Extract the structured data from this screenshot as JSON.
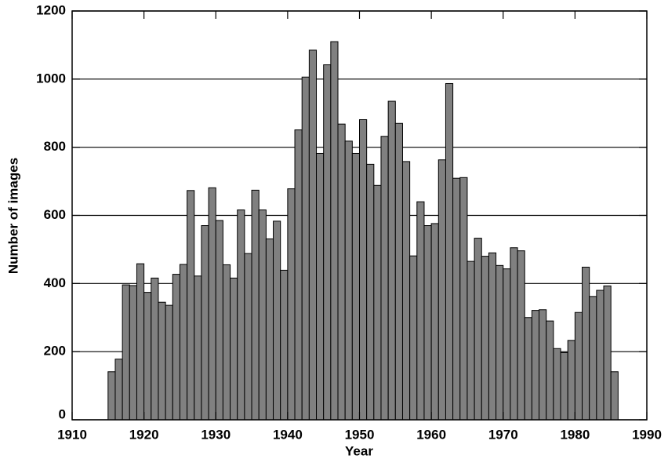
{
  "chart_data": {
    "type": "histogram",
    "x_label": "Year",
    "y_label": "Number of images",
    "bins": [
      1915,
      1916,
      1917,
      1918,
      1919,
      1920,
      1921,
      1922,
      1923,
      1924,
      1925,
      1926,
      1927,
      1928,
      1929,
      1930,
      1931,
      1932,
      1933,
      1934,
      1935,
      1936,
      1937,
      1938,
      1939,
      1940,
      1941,
      1942,
      1943,
      1944,
      1945,
      1946,
      1947,
      1948,
      1949,
      1950,
      1951,
      1952,
      1953,
      1954,
      1955,
      1956,
      1957,
      1958,
      1959,
      1960,
      1961,
      1962,
      1963,
      1964,
      1965,
      1966,
      1967,
      1968,
      1969,
      1970,
      1971,
      1972,
      1973,
      1974,
      1975,
      1976,
      1977,
      1978,
      1979,
      1980,
      1981,
      1982,
      1983,
      1984,
      1985,
      1986
    ],
    "values": [
      141,
      178,
      396,
      394,
      458,
      374,
      416,
      345,
      336,
      427,
      456,
      673,
      422,
      570,
      681,
      585,
      455,
      416,
      616,
      488,
      674,
      616,
      531,
      583,
      439,
      678,
      851,
      1006,
      1085,
      782,
      1042,
      1110,
      868,
      818,
      782,
      881,
      750,
      688,
      832,
      935,
      870,
      758,
      481,
      640,
      570,
      576,
      763,
      987,
      709,
      711,
      465,
      533,
      480,
      490,
      453,
      443,
      505,
      496,
      300,
      321,
      323,
      290,
      209,
      197,
      233,
      315,
      448,
      362,
      380,
      393,
      141
    ],
    "color": "#808080",
    "xlim": [
      1910,
      1990
    ],
    "xticks": [
      1910,
      1920,
      1930,
      1940,
      1950,
      1960,
      1970,
      1980,
      1990
    ],
    "ylim": [
      0,
      1200
    ],
    "yticks": [
      0,
      200,
      400,
      600,
      800,
      1000,
      1200
    ],
    "grid": true
  }
}
